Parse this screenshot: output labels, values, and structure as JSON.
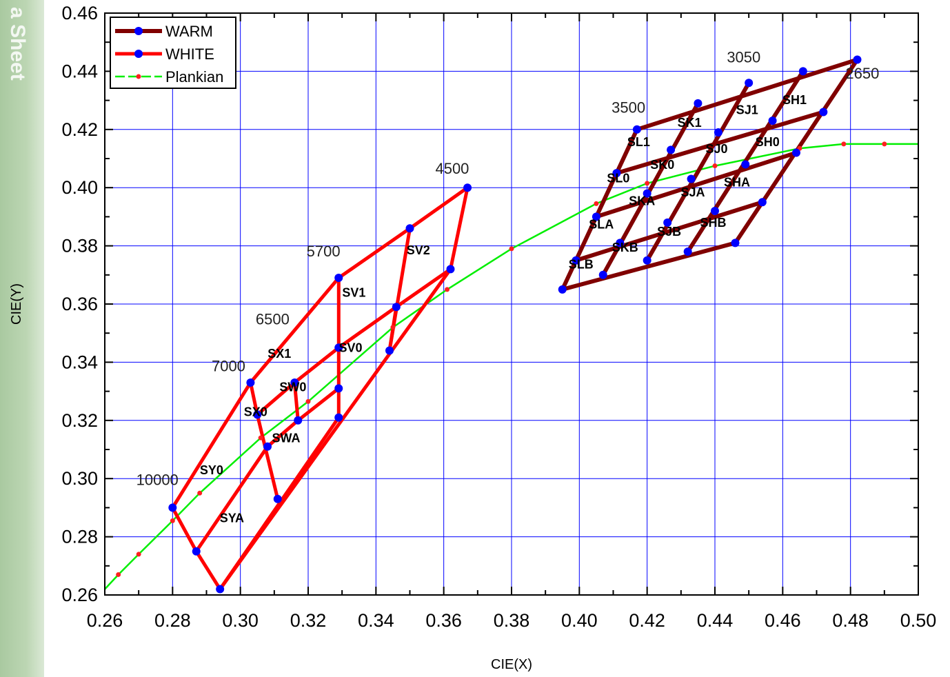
{
  "background": {
    "watermark": "a Sheet"
  },
  "chart_data": {
    "type": "line",
    "xlabel": "CIE(X)",
    "ylabel": "CIE(Y)",
    "xlim": [
      0.26,
      0.5
    ],
    "ylim": [
      0.26,
      0.46
    ],
    "x_ticks": [
      "0.26",
      "0.28",
      "0.30",
      "0.32",
      "0.34",
      "0.36",
      "0.38",
      "0.40",
      "0.42",
      "0.44",
      "0.46",
      "0.48",
      "0.50"
    ],
    "y_ticks": [
      "0.26",
      "0.28",
      "0.30",
      "0.32",
      "0.34",
      "0.36",
      "0.38",
      "0.40",
      "0.42",
      "0.44",
      "0.46"
    ],
    "grid": true,
    "legend_position": "top-left",
    "series": [
      {
        "name": "WARM",
        "color": "#800000",
        "marker_color": "#0000ff",
        "segments": [
          [
            [
              0.395,
              0.365
            ],
            [
              0.417,
              0.42
            ]
          ],
          [
            [
              0.407,
              0.37
            ],
            [
              0.435,
              0.429
            ]
          ],
          [
            [
              0.42,
              0.375
            ],
            [
              0.45,
              0.436
            ]
          ],
          [
            [
              0.432,
              0.378
            ],
            [
              0.466,
              0.44
            ]
          ],
          [
            [
              0.446,
              0.381
            ],
            [
              0.482,
              0.444
            ]
          ],
          [
            [
              0.395,
              0.365
            ],
            [
              0.446,
              0.381
            ]
          ],
          [
            [
              0.399,
              0.375
            ],
            [
              0.454,
              0.395
            ]
          ],
          [
            [
              0.405,
              0.39
            ],
            [
              0.464,
              0.412
            ]
          ],
          [
            [
              0.411,
              0.405
            ],
            [
              0.472,
              0.426
            ]
          ],
          [
            [
              0.417,
              0.42
            ],
            [
              0.482,
              0.444
            ]
          ]
        ],
        "points": [
          [
            0.395,
            0.365
          ],
          [
            0.407,
            0.37
          ],
          [
            0.42,
            0.375
          ],
          [
            0.432,
            0.378
          ],
          [
            0.446,
            0.381
          ],
          [
            0.399,
            0.375
          ],
          [
            0.412,
            0.381
          ],
          [
            0.426,
            0.388
          ],
          [
            0.44,
            0.392
          ],
          [
            0.454,
            0.395
          ],
          [
            0.405,
            0.39
          ],
          [
            0.42,
            0.398
          ],
          [
            0.433,
            0.403
          ],
          [
            0.449,
            0.408
          ],
          [
            0.464,
            0.412
          ],
          [
            0.411,
            0.405
          ],
          [
            0.427,
            0.413
          ],
          [
            0.441,
            0.419
          ],
          [
            0.457,
            0.423
          ],
          [
            0.472,
            0.426
          ],
          [
            0.417,
            0.42
          ],
          [
            0.435,
            0.429
          ],
          [
            0.45,
            0.436
          ],
          [
            0.466,
            0.44
          ],
          [
            0.482,
            0.444
          ]
        ]
      },
      {
        "name": "WHITE",
        "color": "#ff0000",
        "marker_color": "#0000ff",
        "segments": [
          [
            [
              0.28,
              0.29
            ],
            [
              0.303,
              0.333
            ],
            [
              0.329,
              0.369
            ],
            [
              0.35,
              0.386
            ],
            [
              0.367,
              0.4
            ]
          ],
          [
            [
              0.367,
              0.4
            ],
            [
              0.362,
              0.372
            ],
            [
              0.294,
              0.262
            ],
            [
              0.287,
              0.275
            ],
            [
              0.28,
              0.29
            ]
          ],
          [
            [
              0.294,
              0.262
            ],
            [
              0.329,
              0.321
            ],
            [
              0.329,
              0.369
            ]
          ],
          [
            [
              0.287,
              0.275
            ],
            [
              0.308,
              0.311
            ],
            [
              0.317,
              0.32
            ],
            [
              0.329,
              0.331
            ]
          ],
          [
            [
              0.303,
              0.333
            ],
            [
              0.305,
              0.322
            ],
            [
              0.316,
              0.333
            ],
            [
              0.329,
              0.345
            ],
            [
              0.346,
              0.359
            ],
            [
              0.362,
              0.372
            ]
          ],
          [
            [
              0.305,
              0.322
            ],
            [
              0.311,
              0.293
            ]
          ],
          [
            [
              0.316,
              0.333
            ],
            [
              0.317,
              0.32
            ]
          ],
          [
            [
              0.35,
              0.386
            ],
            [
              0.344,
              0.344
            ]
          ],
          [
            [
              0.346,
              0.359
            ],
            [
              0.344,
              0.344
            ]
          ]
        ],
        "points": [
          [
            0.28,
            0.29
          ],
          [
            0.287,
            0.275
          ],
          [
            0.294,
            0.262
          ],
          [
            0.311,
            0.293
          ],
          [
            0.308,
            0.311
          ],
          [
            0.305,
            0.322
          ],
          [
            0.303,
            0.333
          ],
          [
            0.317,
            0.32
          ],
          [
            0.316,
            0.333
          ],
          [
            0.329,
            0.321
          ],
          [
            0.329,
            0.331
          ],
          [
            0.329,
            0.345
          ],
          [
            0.329,
            0.369
          ],
          [
            0.344,
            0.344
          ],
          [
            0.346,
            0.359
          ],
          [
            0.362,
            0.372
          ],
          [
            0.35,
            0.386
          ],
          [
            0.367,
            0.4
          ]
        ]
      },
      {
        "name": "Plankian",
        "color": "#00ee00",
        "marker_color": "#ff2020",
        "points": [
          [
            0.26,
            0.262
          ],
          [
            0.264,
            0.267
          ],
          [
            0.27,
            0.274
          ],
          [
            0.28,
            0.2855
          ],
          [
            0.288,
            0.295
          ],
          [
            0.306,
            0.314
          ],
          [
            0.32,
            0.3265
          ],
          [
            0.345,
            0.352
          ],
          [
            0.361,
            0.365
          ],
          [
            0.38,
            0.379
          ],
          [
            0.405,
            0.3945
          ],
          [
            0.42,
            0.4015
          ],
          [
            0.44,
            0.4075
          ],
          [
            0.465,
            0.4135
          ],
          [
            0.478,
            0.415
          ],
          [
            0.49,
            0.415
          ],
          [
            0.5,
            0.415
          ]
        ]
      }
    ],
    "bin_labels": [
      {
        "text": "SH1",
        "x": 0.4635,
        "y": 0.4287
      },
      {
        "text": "SJ1",
        "x": 0.4495,
        "y": 0.4253
      },
      {
        "text": "SK1",
        "x": 0.4325,
        "y": 0.4209
      },
      {
        "text": "SH0",
        "x": 0.4555,
        "y": 0.4143
      },
      {
        "text": "SL1",
        "x": 0.4175,
        "y": 0.4143
      },
      {
        "text": "SJ0",
        "x": 0.4405,
        "y": 0.4119
      },
      {
        "text": "SK0",
        "x": 0.4245,
        "y": 0.4065
      },
      {
        "text": "SL0",
        "x": 0.4115,
        "y": 0.4018
      },
      {
        "text": "SHA",
        "x": 0.4465,
        "y": 0.4004
      },
      {
        "text": "SJA",
        "x": 0.4335,
        "y": 0.397
      },
      {
        "text": "SKA",
        "x": 0.4185,
        "y": 0.394
      },
      {
        "text": "SLA",
        "x": 0.4065,
        "y": 0.386
      },
      {
        "text": "SHB",
        "x": 0.4395,
        "y": 0.3865
      },
      {
        "text": "SJB",
        "x": 0.4265,
        "y": 0.3835
      },
      {
        "text": "SKB",
        "x": 0.4135,
        "y": 0.378
      },
      {
        "text": "SLB",
        "x": 0.4005,
        "y": 0.3722
      },
      {
        "text": "SV2",
        "x": 0.3525,
        "y": 0.3771
      },
      {
        "text": "SV1",
        "x": 0.3335,
        "y": 0.3625
      },
      {
        "text": "SV0",
        "x": 0.3325,
        "y": 0.3435
      },
      {
        "text": "SX1",
        "x": 0.3115,
        "y": 0.3415
      },
      {
        "text": "SW0",
        "x": 0.3155,
        "y": 0.33
      },
      {
        "text": "SX0",
        "x": 0.3045,
        "y": 0.3215
      },
      {
        "text": "SWA",
        "x": 0.3135,
        "y": 0.3125
      },
      {
        "text": "SY0",
        "x": 0.2915,
        "y": 0.3015
      },
      {
        "text": "SYA",
        "x": 0.2975,
        "y": 0.285
      }
    ],
    "cct_labels": [
      {
        "text": "4500",
        "x": 0.3625,
        "y": 0.4048
      },
      {
        "text": "5700",
        "x": 0.3245,
        "y": 0.3763
      },
      {
        "text": "6500",
        "x": 0.3095,
        "y": 0.353
      },
      {
        "text": "7000",
        "x": 0.2965,
        "y": 0.3369
      },
      {
        "text": "10000",
        "x": 0.2755,
        "y": 0.2978
      },
      {
        "text": "3500",
        "x": 0.4145,
        "y": 0.4258
      },
      {
        "text": "3050",
        "x": 0.4485,
        "y": 0.4431
      },
      {
        "text": "2650",
        "x": 0.4835,
        "y": 0.4375
      }
    ]
  }
}
